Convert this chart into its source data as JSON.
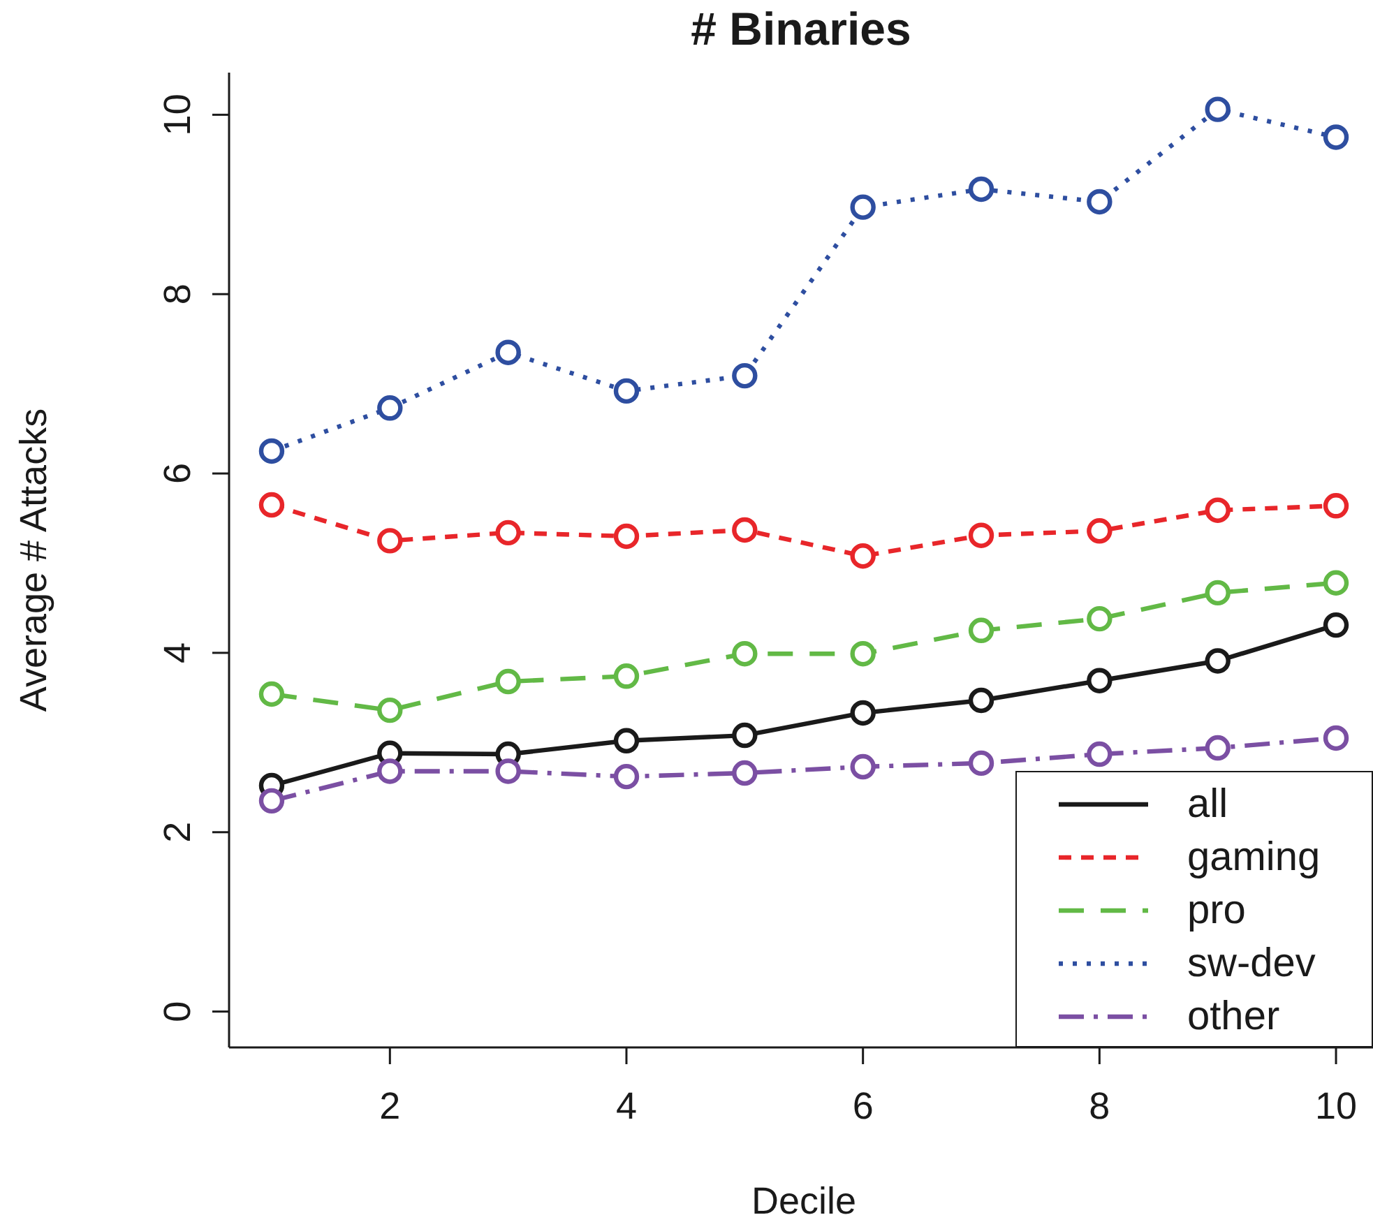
{
  "chart_data": {
    "type": "line",
    "title": "# Binaries",
    "xlabel": "Decile",
    "ylabel": "Average # Attacks",
    "x": [
      1,
      2,
      3,
      4,
      5,
      6,
      7,
      8,
      9,
      10
    ],
    "xlim": [
      0.64,
      10.36
    ],
    "xticks": [
      2,
      4,
      6,
      8,
      10
    ],
    "ylim": [
      -0.4,
      10.47
    ],
    "yticks": [
      0,
      2,
      4,
      6,
      8,
      10
    ],
    "grid": false,
    "legend": "bottom right",
    "marker": "circle",
    "series": [
      {
        "name": "all",
        "color": "#1a1a1a",
        "line_style": "solid",
        "values": [
          2.52,
          2.88,
          2.87,
          3.02,
          3.08,
          3.33,
          3.47,
          3.69,
          3.91,
          4.31
        ]
      },
      {
        "name": "gaming",
        "color": "#e8262a",
        "line_style": "dashed",
        "values": [
          5.65,
          5.25,
          5.34,
          5.3,
          5.37,
          5.08,
          5.31,
          5.36,
          5.59,
          5.64
        ]
      },
      {
        "name": "pro",
        "color": "#62b946",
        "line_style": "longdash",
        "values": [
          3.54,
          3.36,
          3.68,
          3.74,
          3.99,
          3.99,
          4.25,
          4.38,
          4.67,
          4.78
        ]
      },
      {
        "name": "sw-dev",
        "color": "#2e4ea0",
        "line_style": "dotted",
        "values": [
          6.25,
          6.73,
          7.35,
          6.92,
          7.09,
          8.97,
          9.17,
          9.03,
          10.06,
          9.75
        ]
      },
      {
        "name": "other",
        "color": "#7b4fa3",
        "line_style": "dashdot",
        "values": [
          2.35,
          2.68,
          2.68,
          2.62,
          2.66,
          2.73,
          2.77,
          2.87,
          2.94,
          3.05
        ]
      }
    ]
  }
}
